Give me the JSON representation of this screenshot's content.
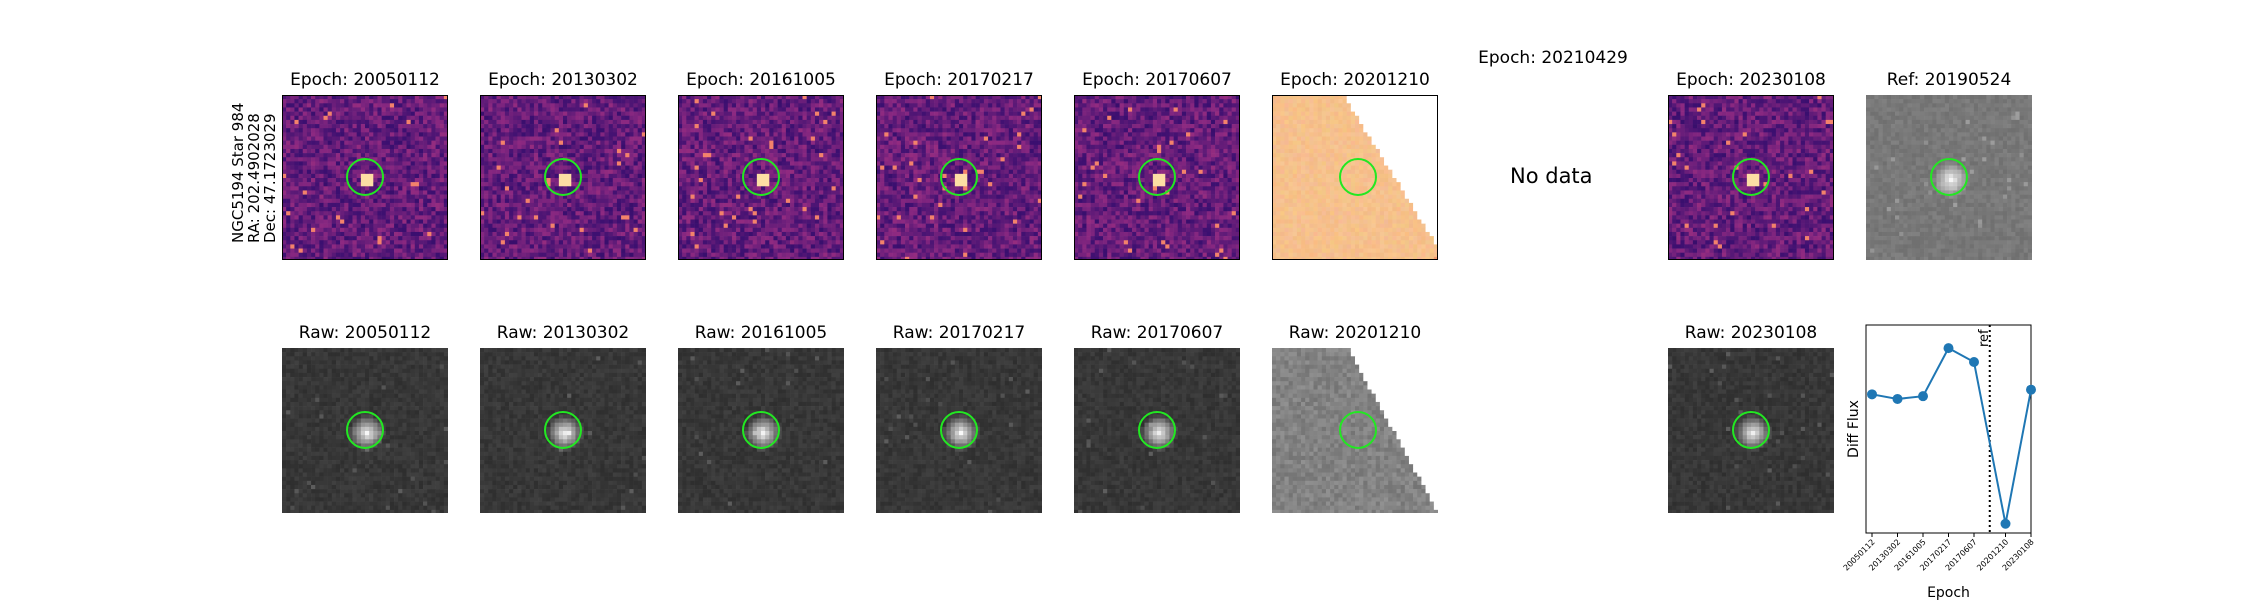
{
  "side_label": [
    "NGC5194 Star 984",
    "RA: 202.4902028",
    "Dec: 47.1723029"
  ],
  "top_row": [
    {
      "title": "Epoch: 20050112",
      "kind": "diff"
    },
    {
      "title": "Epoch: 20130302",
      "kind": "diff"
    },
    {
      "title": "Epoch: 20161005",
      "kind": "diff"
    },
    {
      "title": "Epoch: 20170217",
      "kind": "diff"
    },
    {
      "title": "Epoch: 20170607",
      "kind": "diff"
    },
    {
      "title": "Epoch: 20201210",
      "kind": "diff-partial"
    },
    {
      "title": "Epoch: 20210429",
      "kind": "nodata",
      "text": "No data"
    },
    {
      "title": "Epoch: 20230108",
      "kind": "diff"
    },
    {
      "title": "Ref: 20190524",
      "kind": "ref"
    }
  ],
  "bottom_row": [
    {
      "title": "Raw: 20050112",
      "kind": "raw"
    },
    {
      "title": "Raw: 20130302",
      "kind": "raw"
    },
    {
      "title": "Raw: 20161005",
      "kind": "raw"
    },
    {
      "title": "Raw: 20170217",
      "kind": "raw"
    },
    {
      "title": "Raw: 20170607",
      "kind": "raw"
    },
    {
      "title": "Raw: 20201210",
      "kind": "raw-partial"
    },
    {
      "title": "",
      "kind": "empty"
    },
    {
      "title": "Raw: 20230108",
      "kind": "raw"
    }
  ],
  "colors": {
    "marker_circle": "#22e822",
    "line": "#1f77b4",
    "diff_cmap": "magma",
    "raw_cmap": "gray"
  },
  "chart_data": {
    "type": "line",
    "title": "",
    "xlabel": "Epoch",
    "ylabel": "Diff Flux",
    "categories": [
      "20050112",
      "20130302",
      "20161005",
      "20170217",
      "20170607",
      "20201210",
      "20230108"
    ],
    "values": [
      0.55,
      0.5,
      0.53,
      1.05,
      0.9,
      -0.85,
      0.6
    ],
    "ylim": [
      -0.95,
      1.3
    ],
    "ref_line": {
      "label": "ref",
      "position_between": [
        "20170607",
        "20201210"
      ]
    },
    "grid": false,
    "ytick_labels": "none"
  }
}
